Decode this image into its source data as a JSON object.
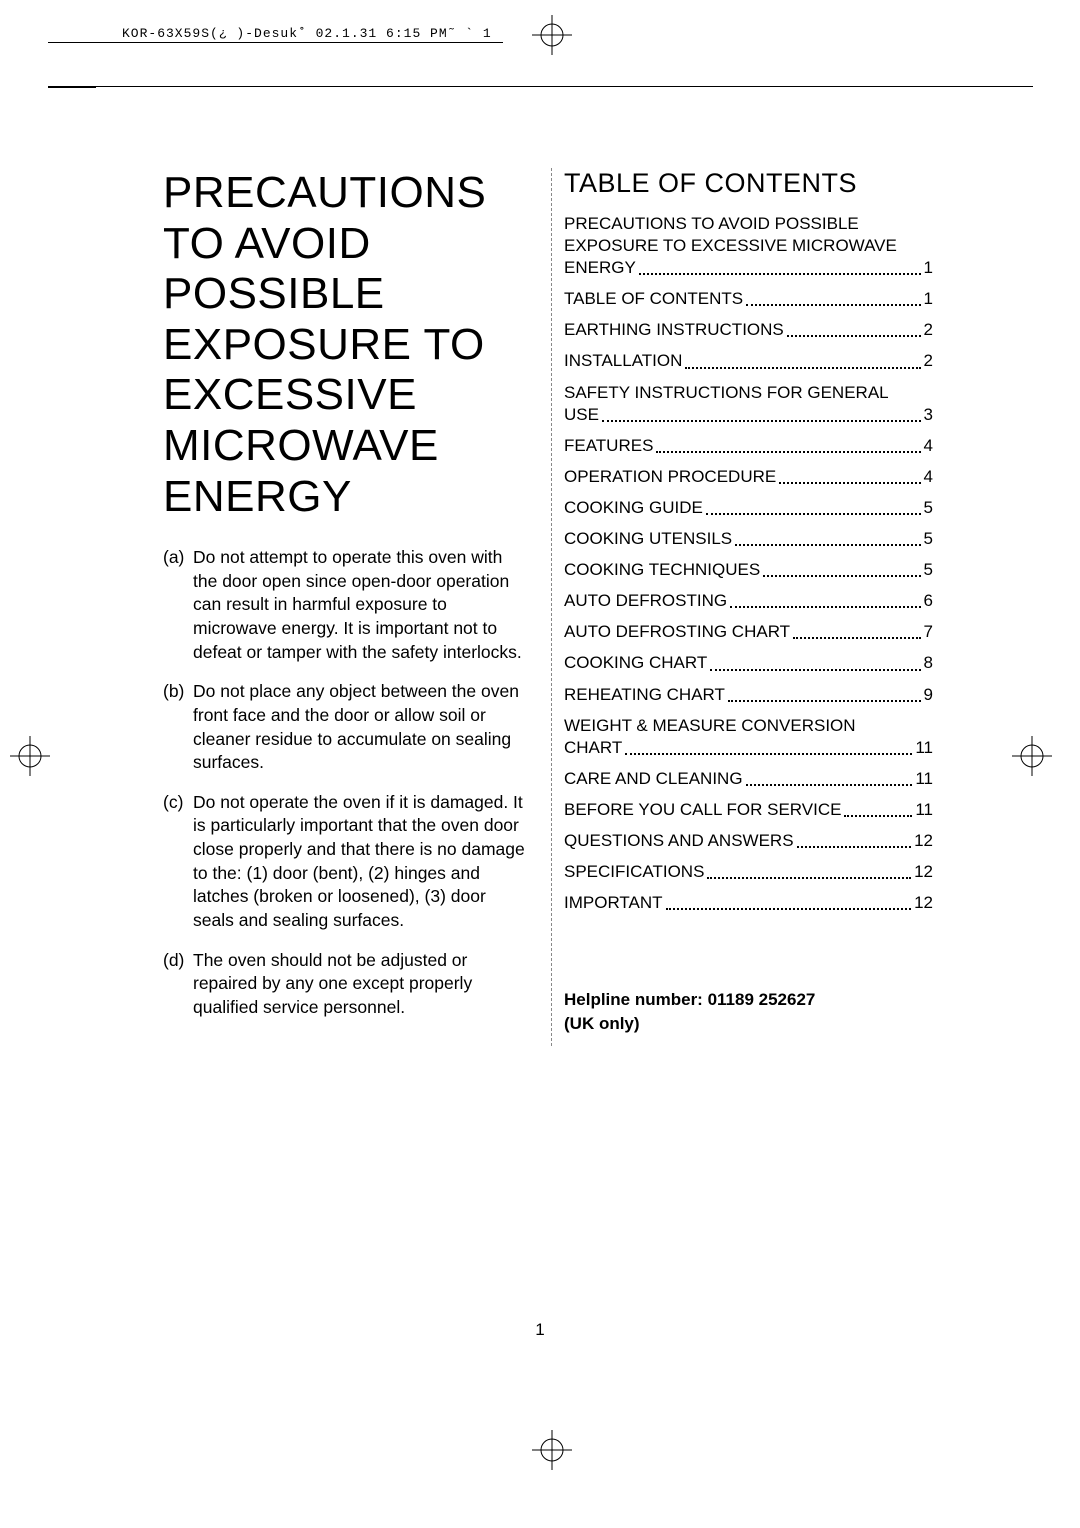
{
  "document": {
    "header_stamp": "KOR-63X59S(¿ )-Desuk˚ 02.1.31 6:15 PM˜  ` 1",
    "page_number": "1",
    "colors": {
      "text": "#000000",
      "background": "#ffffff",
      "dashed": "#888888"
    }
  },
  "precautions": {
    "title": "PRECAUTIONS TO AVOID POSSIBLE EXPOSURE TO EXCESSIVE MICROWAVE ENERGY",
    "items": [
      {
        "marker": "(a)",
        "text": "Do not attempt to operate this oven with the door open since open-door operation can result in harmful exposure to microwave energy. It is important not to defeat or tamper with the safety interlocks."
      },
      {
        "marker": "(b)",
        "text": "Do not place any object between the oven front face and the door or allow soil or cleaner residue to accumulate on sealing surfaces."
      },
      {
        "marker": "(c)",
        "text": "Do not operate the oven if it is damaged. It is particularly important that the oven door close properly and that there is no damage to the: (1) door (bent), (2) hinges and latches (broken or loosened), (3) door seals and sealing surfaces."
      },
      {
        "marker": "(d)",
        "text": "The oven should not be adjusted or repaired by any one except properly qualified service personnel."
      }
    ]
  },
  "toc": {
    "heading": "TABLE OF CONTENTS",
    "entries": [
      {
        "label": "PRECAUTIONS TO AVOID POSSIBLE EXPOSURE TO EXCESSIVE MICROWAVE ENERGY",
        "page": "1",
        "multiline": true
      },
      {
        "label": "TABLE OF CONTENTS",
        "page": "1"
      },
      {
        "label": "EARTHING INSTRUCTIONS",
        "page": "2"
      },
      {
        "label": "INSTALLATION",
        "page": "2"
      },
      {
        "label": "SAFETY INSTRUCTIONS FOR GENERAL USE",
        "page": "3",
        "multiline": true
      },
      {
        "label": "FEATURES",
        "page": "4"
      },
      {
        "label": "OPERATION PROCEDURE",
        "page": "4"
      },
      {
        "label": "COOKING GUIDE",
        "page": "5"
      },
      {
        "label": "COOKING UTENSILS",
        "page": "5"
      },
      {
        "label": "COOKING TECHNIQUES",
        "page": "5"
      },
      {
        "label": "AUTO DEFROSTING",
        "page": "6"
      },
      {
        "label": "AUTO DEFROSTING CHART",
        "page": "7"
      },
      {
        "label": "COOKING CHART",
        "page": "8"
      },
      {
        "label": "REHEATING CHART",
        "page": "9"
      },
      {
        "label": "WEIGHT & MEASURE CONVERSION CHART",
        "page": "11",
        "multiline": true
      },
      {
        "label": "CARE AND CLEANING",
        "page": "11"
      },
      {
        "label": "BEFORE YOU CALL FOR SERVICE",
        "page": "11"
      },
      {
        "label": "QUESTIONS AND ANSWERS",
        "page": "12"
      },
      {
        "label": "SPECIFICATIONS",
        "page": "12"
      },
      {
        "label": "IMPORTANT",
        "page": "12"
      }
    ],
    "helpline_line1": "Helpline number: 01189 252627",
    "helpline_line2": "(UK only)"
  }
}
